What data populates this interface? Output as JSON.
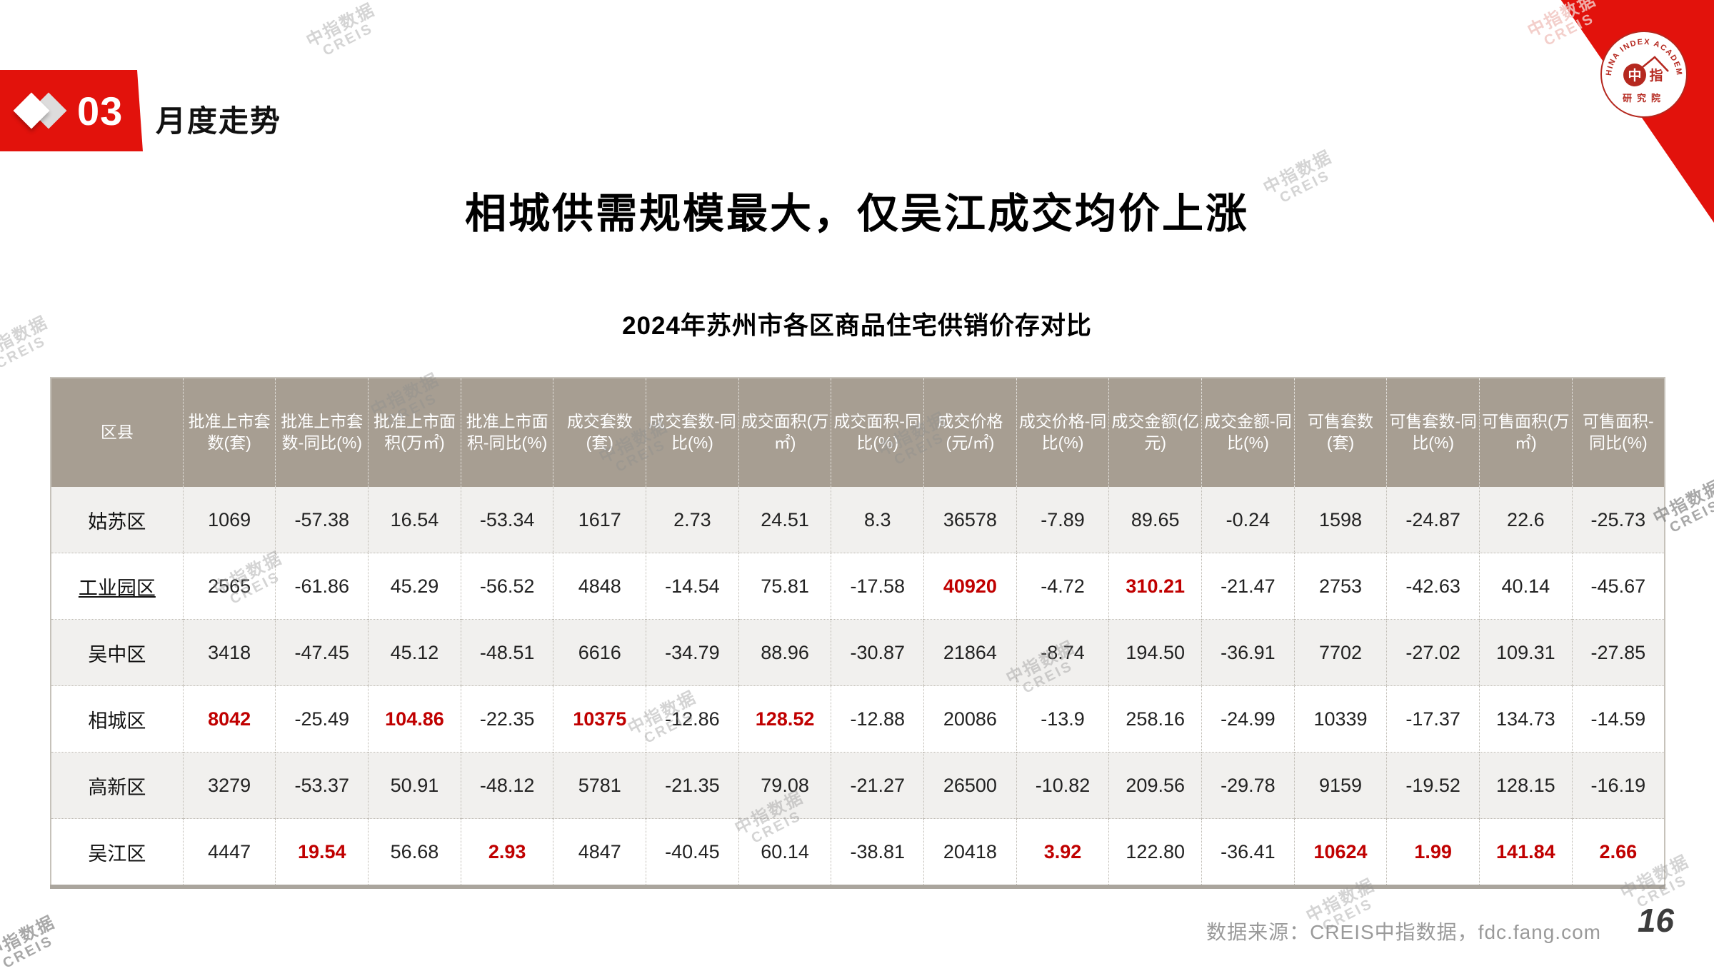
{
  "page": {
    "section_number": "03",
    "section_label": "月度走势",
    "title": "相城供需规模最大，仅吴江成交均价上涨",
    "table_title": "2024年苏州市各区商品住宅供销价存对比",
    "source": "数据来源：CREIS中指数据，fdc.fang.com",
    "page_number": "16"
  },
  "logo": {
    "arc_text": "CHINA INDEX ACADEMY",
    "char1": "中",
    "char2": "指",
    "bottom_text": "研究院"
  },
  "watermark": {
    "line1": "中指数据",
    "line2": "CREIS"
  },
  "colors": {
    "accent_red": "#E2120C",
    "value_red": "#C00000",
    "header_bg": "#A79E92",
    "row_alt_bg": "#F1F0EE",
    "body_text": "#222222",
    "source_text": "#9A9A9A"
  },
  "chart_data": {
    "type": "table",
    "title": "2024年苏州市各区商品住宅供销价存对比",
    "columns": [
      "区县",
      "批准上市套数(套)",
      "批准上市套数-同比(%)",
      "批准上市面积(万㎡)",
      "批准上市面积-同比(%)",
      "成交套数(套)",
      "成交套数-同比(%)",
      "成交面积(万㎡)",
      "成交面积-同比(%)",
      "成交价格(元/㎡)",
      "成交价格-同比(%)",
      "成交金额(亿元)",
      "成交金额-同比(%)",
      "可售套数(套)",
      "可售套数-同比(%)",
      "可售面积(万㎡)",
      "可售面积-同比(%)"
    ],
    "rows": [
      {
        "district": "姑苏区",
        "underline": false,
        "values": [
          "1069",
          "-57.38",
          "16.54",
          "-53.34",
          "1617",
          "2.73",
          "24.51",
          "8.3",
          "36578",
          "-7.89",
          "89.65",
          "-0.24",
          "1598",
          "-24.87",
          "22.6",
          "-25.73"
        ],
        "red": []
      },
      {
        "district": "工业园区",
        "underline": true,
        "values": [
          "2565",
          "-61.86",
          "45.29",
          "-56.52",
          "4848",
          "-14.54",
          "75.81",
          "-17.58",
          "40920",
          "-4.72",
          "310.21",
          "-21.47",
          "2753",
          "-42.63",
          "40.14",
          "-45.67"
        ],
        "red": [
          8,
          10
        ]
      },
      {
        "district": "吴中区",
        "underline": false,
        "values": [
          "3418",
          "-47.45",
          "45.12",
          "-48.51",
          "6616",
          "-34.79",
          "88.96",
          "-30.87",
          "21864",
          "-8.74",
          "194.50",
          "-36.91",
          "7702",
          "-27.02",
          "109.31",
          "-27.85"
        ],
        "red": []
      },
      {
        "district": "相城区",
        "underline": false,
        "values": [
          "8042",
          "-25.49",
          "104.86",
          "-22.35",
          "10375",
          "-12.86",
          "128.52",
          "-12.88",
          "20086",
          "-13.9",
          "258.16",
          "-24.99",
          "10339",
          "-17.37",
          "134.73",
          "-14.59"
        ],
        "red": [
          0,
          2,
          4,
          6
        ]
      },
      {
        "district": "高新区",
        "underline": false,
        "values": [
          "3279",
          "-53.37",
          "50.91",
          "-48.12",
          "5781",
          "-21.35",
          "79.08",
          "-21.27",
          "26500",
          "-10.82",
          "209.56",
          "-29.78",
          "9159",
          "-19.52",
          "128.15",
          "-16.19"
        ],
        "red": []
      },
      {
        "district": "吴江区",
        "underline": false,
        "values": [
          "4447",
          "19.54",
          "56.68",
          "2.93",
          "4847",
          "-40.45",
          "60.14",
          "-38.81",
          "20418",
          "3.92",
          "122.80",
          "-36.41",
          "10624",
          "1.99",
          "141.84",
          "2.66"
        ],
        "red": [
          1,
          3,
          9,
          12,
          13,
          14,
          15
        ]
      }
    ]
  }
}
